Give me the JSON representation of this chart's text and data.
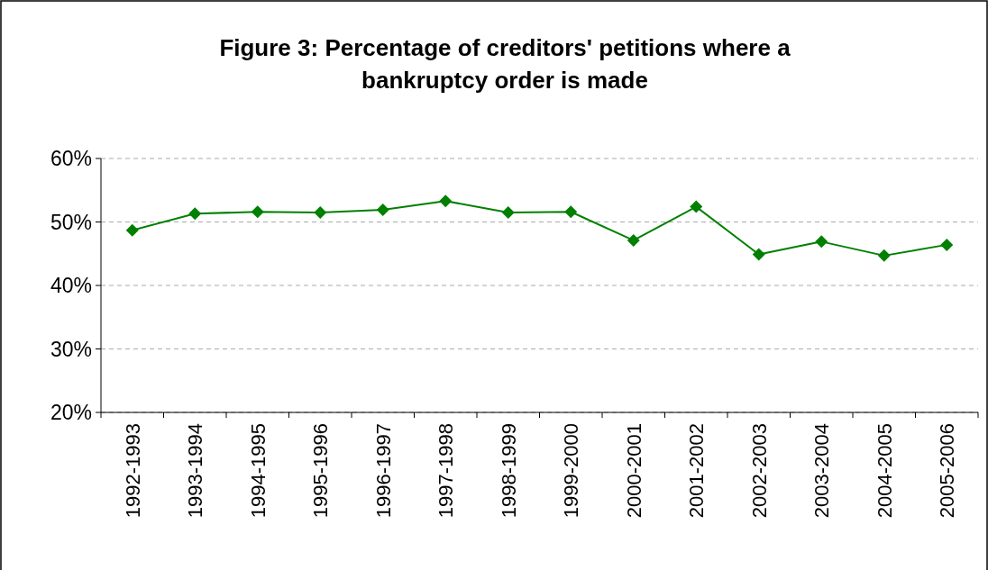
{
  "chart_data": {
    "type": "line",
    "title": "Figure 3: Percentage of creditors' petitions where a bankruptcy order is made",
    "categories": [
      "1992-1993",
      "1993-1994",
      "1994-1995",
      "1995-1996",
      "1996-1997",
      "1997-1998",
      "1998-1999",
      "1999-2000",
      "2000-2001",
      "2001-2002",
      "2002-2003",
      "2003-2004",
      "2004-2005",
      "2005-2006"
    ],
    "series": [
      {
        "color": "#008000",
        "values": [
          48.7,
          51.3,
          51.6,
          51.5,
          51.9,
          53.3,
          51.5,
          51.6,
          47.1,
          52.4,
          44.9,
          46.9,
          44.7,
          46.4
        ]
      }
    ],
    "ylim": [
      20,
      60
    ],
    "yticks": [
      {
        "value": 20,
        "label": "20%"
      },
      {
        "value": 30,
        "label": "30%"
      },
      {
        "value": 40,
        "label": "40%"
      },
      {
        "value": 50,
        "label": "50%"
      },
      {
        "value": 60,
        "label": "60%"
      }
    ],
    "grid": "y",
    "marker": "diamond",
    "line_style": "solid"
  }
}
